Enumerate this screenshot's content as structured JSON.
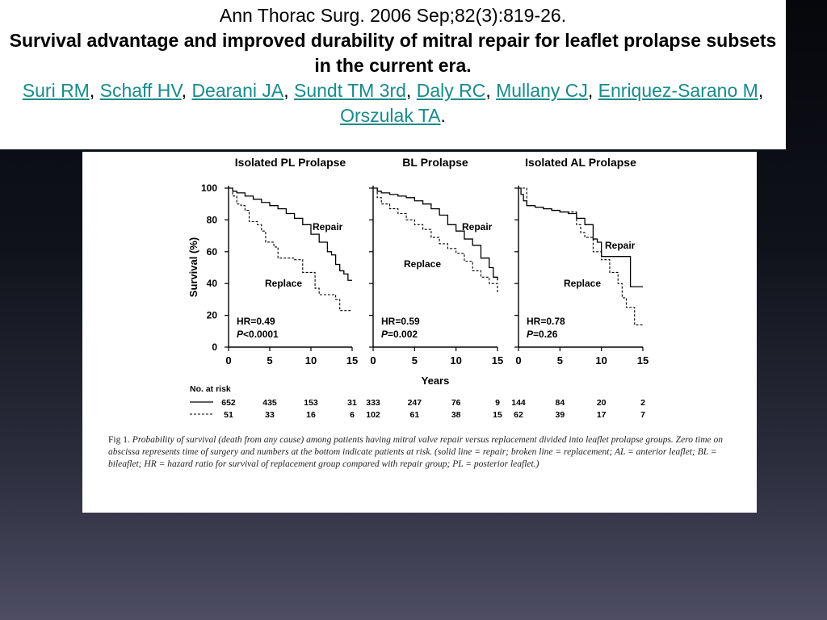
{
  "header": {
    "citation": "Ann Thorac Surg. 2006 Sep;82(3):819-26.",
    "title": "Survival advantage and improved durability of mitral repair for leaflet prolapse subsets in the current era.",
    "authors": [
      {
        "name": "Suri RM",
        "sep": ", "
      },
      {
        "name": "Schaff HV",
        "sep": ", "
      },
      {
        "name": "Dearani JA",
        "sep": ", "
      },
      {
        "name": "Sundt TM 3rd",
        "sep": ", "
      },
      {
        "name": "Daly RC",
        "sep": ", "
      },
      {
        "name": "Mullany CJ",
        "sep": ", "
      },
      {
        "name": "Enriquez-Sarano M",
        "sep": ", "
      },
      {
        "name": "Orszulak TA",
        "sep": "."
      }
    ],
    "link_color": "#1a8a8a"
  },
  "chart_data": [
    {
      "type": "line",
      "title": "Isolated PL Prolapse",
      "ylabel": "Survival (%)",
      "xlabel": "Years",
      "ylim": [
        0,
        100
      ],
      "xlim": [
        0,
        15
      ],
      "yticks": [
        "100",
        "80",
        "60",
        "40",
        "20",
        "0"
      ],
      "xticks": [
        "0",
        "5",
        "10",
        "15"
      ],
      "series": [
        {
          "name": "Repair",
          "style": "solid",
          "x": [
            0,
            0.5,
            1,
            2,
            3,
            4,
            5,
            6,
            7,
            8,
            9,
            10,
            11,
            12,
            12.5,
            13,
            13.5,
            14,
            14.5,
            15
          ],
          "y": [
            100,
            98,
            97,
            95,
            93,
            91,
            89,
            87,
            84,
            81,
            77,
            71,
            66,
            60,
            58,
            52,
            48,
            46,
            42,
            42
          ]
        },
        {
          "name": "Replace",
          "style": "dashed",
          "x": [
            0,
            0.5,
            1,
            1.5,
            2,
            2.5,
            3,
            3.5,
            4,
            4.5,
            5,
            5.5,
            6,
            7,
            8,
            9,
            10,
            10.5,
            11,
            12,
            13,
            13.5,
            14,
            15
          ],
          "y": [
            100,
            95,
            90,
            89,
            86,
            79,
            79,
            77,
            73,
            66,
            66,
            63,
            56,
            56,
            55,
            47,
            47,
            37,
            33,
            33,
            30,
            23,
            23,
            23
          ]
        }
      ],
      "stats": [
        "HR=0.49",
        "P<0.0001"
      ],
      "at_risk": {
        "repair": [
          "652",
          "435",
          "153",
          "31"
        ],
        "replace": [
          "51",
          "33",
          "16",
          "6"
        ]
      }
    },
    {
      "type": "line",
      "title": "BL Prolapse",
      "xlabel": "Years",
      "ylim": [
        0,
        100
      ],
      "xlim": [
        0,
        15
      ],
      "xticks": [
        "0",
        "5",
        "10",
        "15"
      ],
      "series": [
        {
          "name": "Repair",
          "style": "solid",
          "x": [
            0,
            0.5,
            1,
            2,
            3,
            4,
            5,
            6,
            7,
            8,
            9,
            10,
            11,
            12,
            13,
            14,
            14.5,
            15
          ],
          "y": [
            100,
            98,
            97,
            96,
            95,
            94,
            92,
            90,
            87,
            83,
            77,
            73,
            68,
            64,
            56,
            50,
            44,
            42
          ]
        },
        {
          "name": "Replace",
          "style": "dashed",
          "x": [
            0,
            0.5,
            1,
            2,
            3,
            4,
            5,
            6,
            7,
            8,
            9,
            10,
            11,
            12,
            13,
            14,
            15
          ],
          "y": [
            100,
            94,
            90,
            87,
            84,
            80,
            77,
            74,
            69,
            65,
            62,
            59,
            54,
            48,
            44,
            40,
            34
          ]
        }
      ],
      "stats": [
        "HR=0.59",
        "P=0.002"
      ],
      "at_risk": {
        "repair": [
          "333",
          "247",
          "76",
          "9"
        ],
        "replace": [
          "102",
          "61",
          "38",
          "15"
        ]
      }
    },
    {
      "type": "line",
      "title": "Isolated AL Prolapse",
      "xlabel": "Years",
      "ylim": [
        0,
        100
      ],
      "xlim": [
        0,
        15
      ],
      "xticks": [
        "0",
        "5",
        "10",
        "15"
      ],
      "series": [
        {
          "name": "Repair",
          "style": "solid",
          "x": [
            0,
            0.3,
            0.6,
            1,
            2,
            3,
            4,
            5,
            6,
            7,
            8,
            9,
            9.5,
            10,
            11,
            12,
            13,
            13.5,
            14,
            15
          ],
          "y": [
            100,
            96,
            92,
            89,
            88,
            87,
            86,
            85,
            84,
            81,
            77,
            68,
            66,
            57,
            57,
            57,
            57,
            38,
            38,
            38
          ]
        },
        {
          "name": "Replace",
          "style": "dashed",
          "x": [
            0,
            1,
            2,
            3,
            4,
            5,
            6,
            7,
            7.5,
            8,
            9,
            10,
            11,
            12,
            12.5,
            13,
            14,
            15
          ],
          "y": [
            100,
            89,
            88,
            87,
            86,
            85,
            85,
            77,
            72,
            69,
            60,
            55,
            47,
            40,
            31,
            25,
            14,
            14
          ]
        }
      ],
      "stats": [
        "HR=0.78",
        "P=0.26"
      ],
      "at_risk": {
        "repair": [
          "144",
          "84",
          "20",
          "2"
        ],
        "replace": [
          "62",
          "39",
          "17",
          "7"
        ]
      }
    }
  ],
  "risk_header": "No. at risk",
  "caption": {
    "label": "Fig 1.",
    "text": " Probability of survival (death from any cause) among patients having mitral valve repair versus replacement divided into leaflet prolapse groups. Zero time on abscissa represents time of surgery and numbers at the bottom indicate patients at risk. (solid line = repair; broken line = replacement; AL = anterior leaflet; BL = bileaflet; HR = hazard ratio for survival of replacement group compared with repair group; PL = posterior leaflet.)"
  }
}
